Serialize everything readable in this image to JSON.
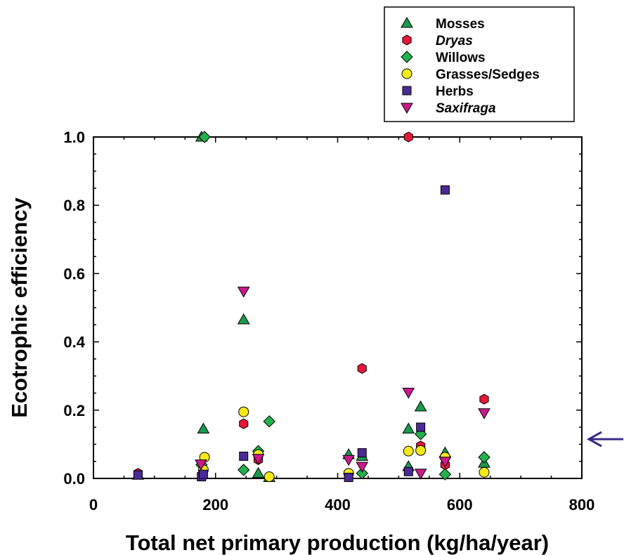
{
  "chart_data": {
    "type": "scatter",
    "title": "",
    "xlabel": "Total net primary production (kg/ha/year)",
    "ylabel": "Ecotrophic efficiency",
    "xlim": [
      0,
      800
    ],
    "ylim": [
      0,
      1.0
    ],
    "xticks": [
      0,
      200,
      400,
      600,
      800
    ],
    "yticks": [
      0.0,
      0.2,
      0.4,
      0.6,
      0.8,
      1.0
    ],
    "xtick_labels": [
      "0",
      "200",
      "400",
      "600",
      "800"
    ],
    "ytick_labels": [
      "0.0",
      "0.2",
      "0.4",
      "0.6",
      "0.8",
      "1.0"
    ],
    "grid": false,
    "legend_position": "top-right",
    "annotations": [
      {
        "type": "arrow",
        "pointing": "left",
        "y": 0.115,
        "color": "#3a2a8a"
      }
    ],
    "series": [
      {
        "name": "Mosses",
        "italic": false,
        "marker": "triangle-up",
        "color": "#1a9a4a",
        "points": [
          [
            73,
            0.01
          ],
          [
            177,
            1.0
          ],
          [
            180,
            0.145
          ],
          [
            246,
            0.465
          ],
          [
            270,
            0.015
          ],
          [
            288,
            0.003
          ],
          [
            418,
            0.07
          ],
          [
            440,
            0.065
          ],
          [
            516,
            0.145
          ],
          [
            516,
            0.035
          ],
          [
            536,
            0.21
          ],
          [
            576,
            0.075
          ],
          [
            640,
            0.045
          ]
        ]
      },
      {
        "name": "Dryas",
        "italic": true,
        "marker": "hexagon",
        "color": "#e8173a",
        "points": [
          [
            73,
            0.015
          ],
          [
            180,
            0.025
          ],
          [
            246,
            0.16
          ],
          [
            270,
            0.055
          ],
          [
            440,
            0.322
          ],
          [
            516,
            1.0
          ],
          [
            536,
            0.095
          ],
          [
            576,
            0.04
          ],
          [
            640,
            0.232
          ]
        ]
      },
      {
        "name": "Willows",
        "italic": false,
        "marker": "diamond",
        "color": "#22b24c",
        "points": [
          [
            177,
            0.04
          ],
          [
            182,
            1.0
          ],
          [
            246,
            0.025
          ],
          [
            270,
            0.08
          ],
          [
            288,
            0.167
          ],
          [
            440,
            0.015
          ],
          [
            536,
            0.13
          ],
          [
            576,
            0.012
          ],
          [
            640,
            0.062
          ]
        ]
      },
      {
        "name": "Grasses/Sedges",
        "italic": false,
        "marker": "circle",
        "color": "#f5e918",
        "points": [
          [
            180,
            0.025
          ],
          [
            182,
            0.062
          ],
          [
            246,
            0.195
          ],
          [
            270,
            0.07
          ],
          [
            288,
            0.005
          ],
          [
            418,
            0.015
          ],
          [
            516,
            0.08
          ],
          [
            536,
            0.082
          ],
          [
            576,
            0.062
          ],
          [
            640,
            0.018
          ]
        ]
      },
      {
        "name": "Herbs",
        "italic": false,
        "marker": "square",
        "color": "#4a2a96",
        "points": [
          [
            73,
            0.01
          ],
          [
            177,
            0.005
          ],
          [
            180,
            0.012
          ],
          [
            246,
            0.065
          ],
          [
            418,
            0.003
          ],
          [
            440,
            0.075
          ],
          [
            516,
            0.02
          ],
          [
            536,
            0.15
          ],
          [
            576,
            0.845
          ]
        ]
      },
      {
        "name": "Saxifraga",
        "italic": true,
        "marker": "triangle-down",
        "color": "#cc1a8c",
        "points": [
          [
            176,
            0.042
          ],
          [
            246,
            0.548
          ],
          [
            270,
            0.058
          ],
          [
            418,
            0.055
          ],
          [
            440,
            0.035
          ],
          [
            516,
            0.252
          ],
          [
            536,
            0.015
          ],
          [
            576,
            0.05
          ],
          [
            640,
            0.192
          ]
        ]
      }
    ]
  }
}
